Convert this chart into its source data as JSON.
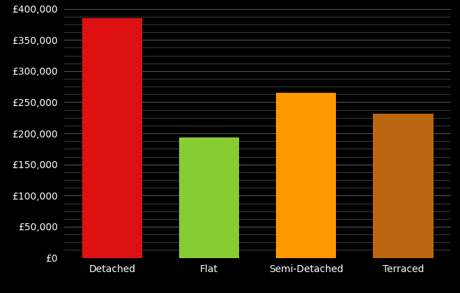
{
  "categories": [
    "Detached",
    "Flat",
    "Semi-Detached",
    "Terraced"
  ],
  "values": [
    385000,
    193000,
    265000,
    232000
  ],
  "bar_colors": [
    "#dd1111",
    "#88cc33",
    "#ff9900",
    "#bb6611"
  ],
  "background_color": "#000000",
  "text_color": "#ffffff",
  "grid_color": "#555555",
  "ylim": [
    0,
    400000
  ],
  "yticks_major": [
    0,
    50000,
    100000,
    150000,
    200000,
    250000,
    300000,
    350000,
    400000
  ],
  "yticks_minor_step": 12500,
  "bar_width": 0.62
}
